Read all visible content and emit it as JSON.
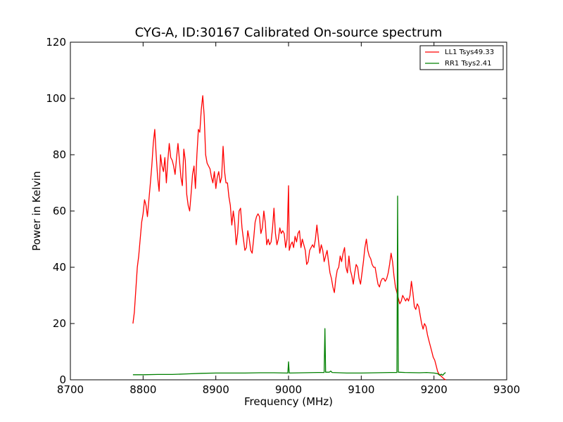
{
  "chart_data": {
    "type": "line",
    "title": "CYG-A, ID:30167 Calibrated On-source spectrum",
    "xlabel": "Frequency (MHz)",
    "ylabel": "Power in Kelvin",
    "xlim": [
      8700,
      9300
    ],
    "ylim": [
      0,
      120
    ],
    "xticks": [
      "8700",
      "8800",
      "8900",
      "9000",
      "9100",
      "9200",
      "9300"
    ],
    "yticks": [
      "0",
      "20",
      "40",
      "60",
      "80",
      "100",
      "120"
    ],
    "grid": false,
    "legend_placement": "top-right",
    "series": [
      {
        "name": "LL1 Tsys49.33",
        "color": "#ff0000",
        "points": [
          [
            8786,
            20
          ],
          [
            8788,
            24
          ],
          [
            8790,
            32
          ],
          [
            8792,
            40
          ],
          [
            8794,
            44
          ],
          [
            8796,
            50
          ],
          [
            8798,
            56
          ],
          [
            8800,
            59
          ],
          [
            8802,
            64
          ],
          [
            8804,
            62
          ],
          [
            8806,
            58
          ],
          [
            8808,
            64
          ],
          [
            8810,
            70
          ],
          [
            8812,
            76
          ],
          [
            8814,
            84
          ],
          [
            8816,
            89
          ],
          [
            8818,
            80
          ],
          [
            8820,
            72
          ],
          [
            8822,
            67
          ],
          [
            8824,
            80
          ],
          [
            8826,
            76
          ],
          [
            8828,
            74
          ],
          [
            8830,
            79
          ],
          [
            8832,
            70
          ],
          [
            8834,
            78
          ],
          [
            8836,
            84
          ],
          [
            8838,
            79
          ],
          [
            8840,
            78
          ],
          [
            8842,
            76
          ],
          [
            8844,
            73
          ],
          [
            8846,
            79
          ],
          [
            8848,
            84
          ],
          [
            8850,
            78
          ],
          [
            8852,
            72
          ],
          [
            8854,
            69
          ],
          [
            8856,
            82
          ],
          [
            8858,
            78
          ],
          [
            8860,
            66
          ],
          [
            8862,
            62
          ],
          [
            8864,
            60
          ],
          [
            8866,
            66
          ],
          [
            8868,
            73
          ],
          [
            8870,
            76
          ],
          [
            8872,
            68
          ],
          [
            8874,
            80
          ],
          [
            8876,
            89
          ],
          [
            8878,
            88
          ],
          [
            8880,
            96
          ],
          [
            8882,
            101
          ],
          [
            8884,
            94
          ],
          [
            8886,
            80
          ],
          [
            8888,
            77
          ],
          [
            8890,
            76
          ],
          [
            8892,
            75
          ],
          [
            8894,
            72
          ],
          [
            8896,
            70
          ],
          [
            8898,
            74
          ],
          [
            8900,
            68
          ],
          [
            8902,
            72
          ],
          [
            8904,
            74
          ],
          [
            8906,
            70
          ],
          [
            8908,
            72
          ],
          [
            8910,
            83
          ],
          [
            8912,
            74
          ],
          [
            8914,
            70
          ],
          [
            8916,
            70
          ],
          [
            8918,
            65
          ],
          [
            8920,
            62
          ],
          [
            8922,
            55
          ],
          [
            8924,
            60
          ],
          [
            8926,
            56
          ],
          [
            8928,
            48
          ],
          [
            8930,
            52
          ],
          [
            8932,
            60
          ],
          [
            8934,
            61
          ],
          [
            8936,
            54
          ],
          [
            8938,
            50
          ],
          [
            8940,
            46
          ],
          [
            8942,
            47
          ],
          [
            8944,
            53
          ],
          [
            8946,
            50
          ],
          [
            8948,
            46
          ],
          [
            8950,
            45
          ],
          [
            8952,
            50
          ],
          [
            8954,
            56
          ],
          [
            8956,
            58
          ],
          [
            8958,
            59
          ],
          [
            8960,
            58
          ],
          [
            8962,
            52
          ],
          [
            8964,
            54
          ],
          [
            8966,
            60
          ],
          [
            8968,
            56
          ],
          [
            8970,
            48
          ],
          [
            8972,
            50
          ],
          [
            8974,
            48
          ],
          [
            8976,
            49
          ],
          [
            8978,
            54
          ],
          [
            8980,
            61
          ],
          [
            8982,
            52
          ],
          [
            8984,
            48
          ],
          [
            8986,
            50
          ],
          [
            8988,
            54
          ],
          [
            8990,
            52
          ],
          [
            8992,
            53
          ],
          [
            8994,
            52
          ],
          [
            8996,
            47
          ],
          [
            8998,
            50
          ],
          [
            9000,
            69
          ],
          [
            9001,
            46
          ],
          [
            9003,
            48
          ],
          [
            9005,
            49
          ],
          [
            9007,
            47
          ],
          [
            9009,
            51
          ],
          [
            9011,
            49
          ],
          [
            9013,
            52
          ],
          [
            9015,
            53
          ],
          [
            9017,
            47
          ],
          [
            9019,
            50
          ],
          [
            9021,
            48
          ],
          [
            9023,
            46
          ],
          [
            9025,
            41
          ],
          [
            9027,
            42
          ],
          [
            9029,
            46
          ],
          [
            9031,
            47
          ],
          [
            9033,
            48
          ],
          [
            9035,
            47
          ],
          [
            9037,
            50
          ],
          [
            9039,
            55
          ],
          [
            9041,
            50
          ],
          [
            9043,
            45
          ],
          [
            9045,
            48
          ],
          [
            9047,
            46
          ],
          [
            9049,
            42
          ],
          [
            9051,
            44
          ],
          [
            9053,
            46
          ],
          [
            9055,
            42
          ],
          [
            9057,
            38
          ],
          [
            9059,
            36
          ],
          [
            9061,
            33
          ],
          [
            9063,
            31
          ],
          [
            9065,
            36
          ],
          [
            9067,
            39
          ],
          [
            9069,
            40
          ],
          [
            9071,
            44
          ],
          [
            9073,
            42
          ],
          [
            9075,
            45
          ],
          [
            9077,
            47
          ],
          [
            9079,
            40
          ],
          [
            9081,
            38
          ],
          [
            9083,
            44
          ],
          [
            9085,
            39
          ],
          [
            9087,
            37
          ],
          [
            9089,
            34
          ],
          [
            9091,
            38
          ],
          [
            9093,
            41
          ],
          [
            9095,
            40
          ],
          [
            9097,
            36
          ],
          [
            9099,
            34
          ],
          [
            9101,
            38
          ],
          [
            9103,
            42
          ],
          [
            9105,
            47
          ],
          [
            9107,
            50
          ],
          [
            9109,
            46
          ],
          [
            9111,
            44
          ],
          [
            9113,
            43
          ],
          [
            9115,
            41
          ],
          [
            9117,
            40
          ],
          [
            9119,
            40
          ],
          [
            9121,
            37
          ],
          [
            9123,
            34
          ],
          [
            9125,
            33
          ],
          [
            9127,
            35
          ],
          [
            9129,
            36
          ],
          [
            9131,
            36
          ],
          [
            9133,
            35
          ],
          [
            9135,
            36
          ],
          [
            9137,
            38
          ],
          [
            9139,
            41
          ],
          [
            9141,
            45
          ],
          [
            9143,
            42
          ],
          [
            9145,
            37
          ],
          [
            9147,
            33
          ],
          [
            9149,
            31
          ],
          [
            9151,
            29
          ],
          [
            9153,
            27
          ],
          [
            9155,
            28
          ],
          [
            9157,
            30
          ],
          [
            9159,
            29
          ],
          [
            9161,
            28
          ],
          [
            9163,
            29
          ],
          [
            9165,
            28
          ],
          [
            9167,
            30
          ],
          [
            9169,
            35
          ],
          [
            9171,
            31
          ],
          [
            9173,
            26
          ],
          [
            9175,
            25
          ],
          [
            9177,
            27
          ],
          [
            9179,
            26
          ],
          [
            9181,
            23
          ],
          [
            9183,
            20
          ],
          [
            9185,
            18
          ],
          [
            9187,
            20
          ],
          [
            9189,
            19
          ],
          [
            9191,
            16
          ],
          [
            9193,
            14
          ],
          [
            9195,
            12
          ],
          [
            9197,
            10
          ],
          [
            9199,
            8
          ],
          [
            9201,
            7
          ],
          [
            9203,
            5
          ],
          [
            9205,
            3
          ],
          [
            9207,
            2
          ],
          [
            9209,
            1.5
          ],
          [
            9211,
            1
          ],
          [
            9214,
            0.3
          ],
          [
            9216,
            0
          ]
        ]
      },
      {
        "name": "RR1 Tsys2.41",
        "color": "#008000",
        "points": [
          [
            8786,
            1.8
          ],
          [
            8800,
            1.8
          ],
          [
            8820,
            1.9
          ],
          [
            8840,
            1.9
          ],
          [
            8860,
            2.1
          ],
          [
            8880,
            2.3
          ],
          [
            8900,
            2.4
          ],
          [
            8920,
            2.4
          ],
          [
            8940,
            2.4
          ],
          [
            8960,
            2.5
          ],
          [
            8980,
            2.5
          ],
          [
            8998,
            2.4
          ],
          [
            8999,
            2.4
          ],
          [
            9000,
            6.4
          ],
          [
            9001,
            2.4
          ],
          [
            9020,
            2.5
          ],
          [
            9040,
            2.6
          ],
          [
            9048,
            2.6
          ],
          [
            9049,
            2.6
          ],
          [
            9050,
            18.2
          ],
          [
            9051,
            2.7
          ],
          [
            9056,
            2.7
          ],
          [
            9058,
            3.1
          ],
          [
            9060,
            2.6
          ],
          [
            9080,
            2.4
          ],
          [
            9100,
            2.4
          ],
          [
            9120,
            2.5
          ],
          [
            9140,
            2.6
          ],
          [
            9148,
            2.6
          ],
          [
            9149,
            2.6
          ],
          [
            9150,
            65.3
          ],
          [
            9151,
            2.7
          ],
          [
            9160,
            2.6
          ],
          [
            9180,
            2.5
          ],
          [
            9190,
            2.6
          ],
          [
            9200,
            2.4
          ],
          [
            9205,
            2.2
          ],
          [
            9208,
            1.6
          ],
          [
            9210,
            2.0
          ],
          [
            9212,
            1.6
          ],
          [
            9214,
            2.2
          ],
          [
            9216,
            2.6
          ]
        ]
      }
    ]
  }
}
